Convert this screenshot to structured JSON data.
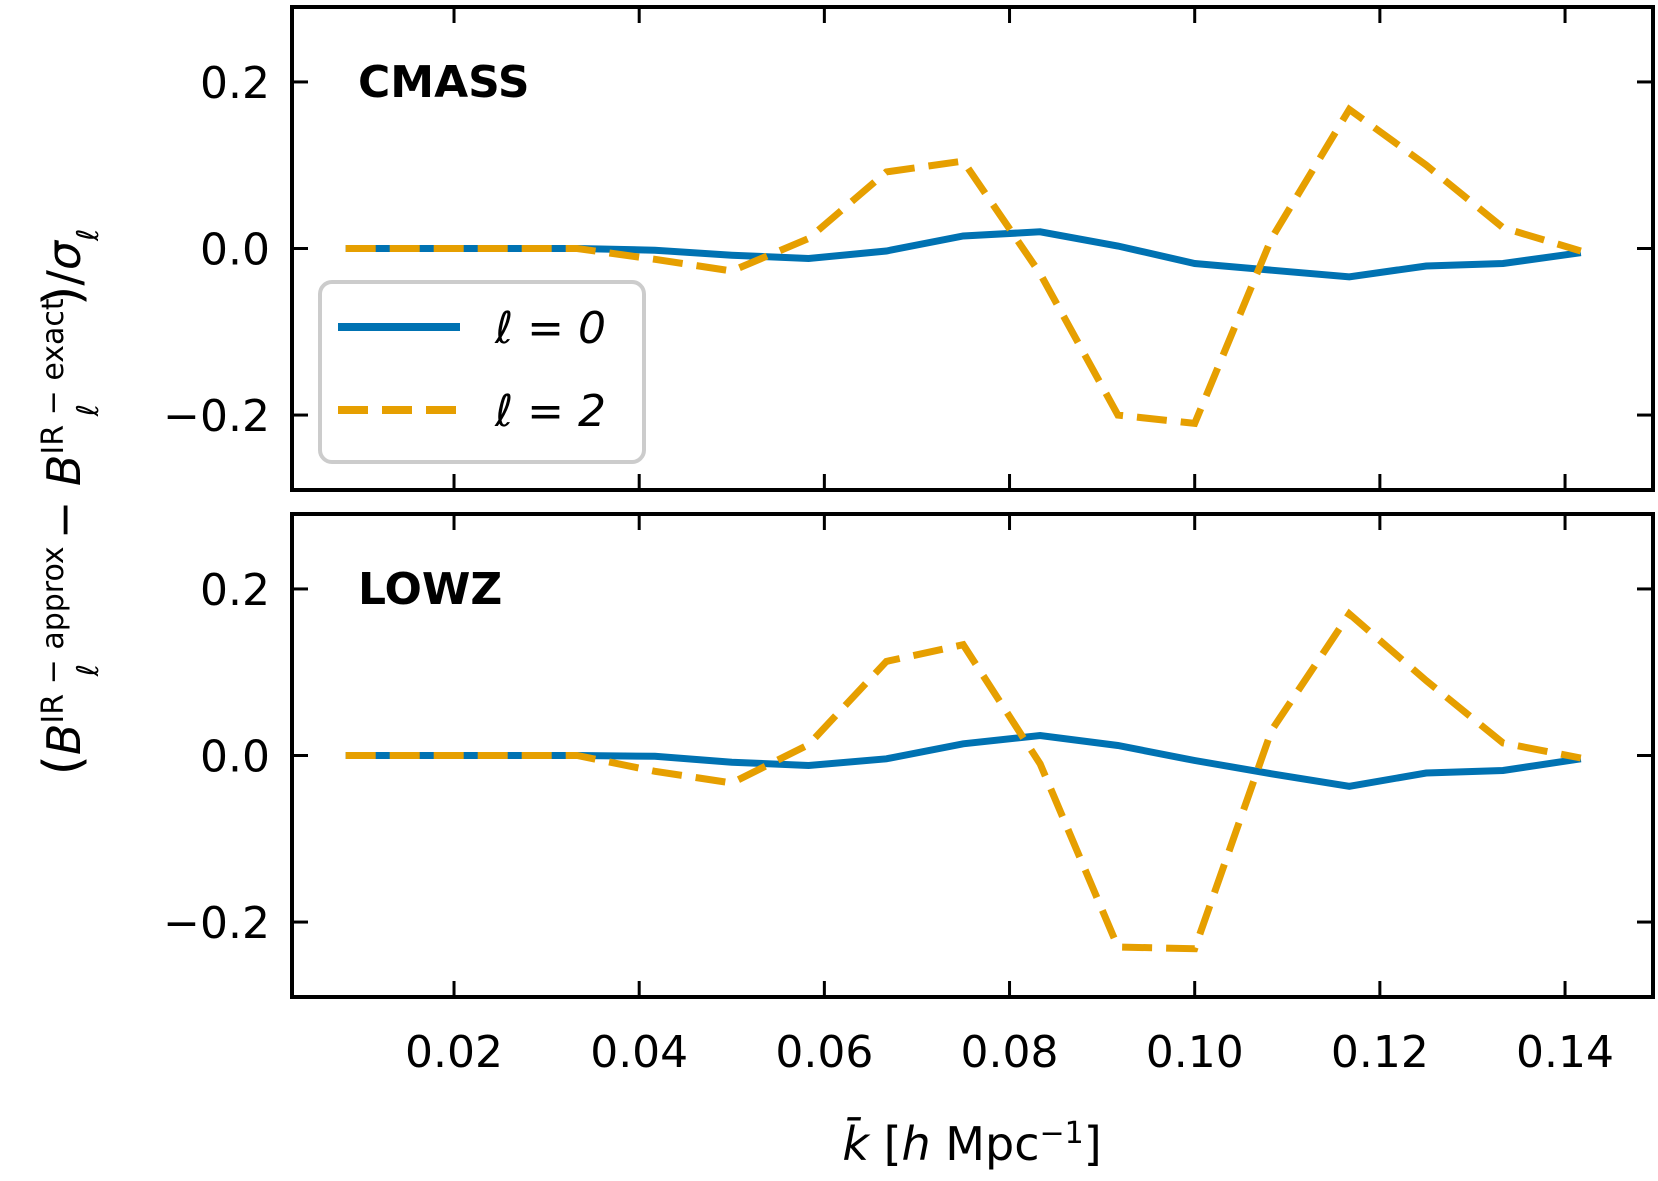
{
  "chart_data": {
    "type": "line",
    "xlabel": "k̄ [h Mpc⁻¹]",
    "ylabel": "(B_ℓ^{IR−approx} − B_ℓ^{IR−exact})/σ_ℓ",
    "xlim": [
      0.0025,
      0.1495
    ],
    "ylim": [
      -0.29,
      0.29
    ],
    "x_ticks": [
      0.02,
      0.04,
      0.06,
      0.08,
      0.1,
      0.12,
      0.14
    ],
    "x_tick_labels": [
      "0.02",
      "0.04",
      "0.06",
      "0.08",
      "0.10",
      "0.12",
      "0.14"
    ],
    "y_ticks": [
      0.2,
      0.0,
      -0.2
    ],
    "y_tick_labels": [
      "0.2",
      "0.0",
      "−0.2"
    ],
    "legend": {
      "location": "center-left of top panel",
      "entries": [
        {
          "label": "ℓ = 0",
          "color": "#0072b2",
          "style": "solid"
        },
        {
          "label": "ℓ = 2",
          "color": "#e69f00",
          "style": "dashed"
        }
      ]
    },
    "panels": [
      {
        "title": "CMASS",
        "x": [
          0.0083,
          0.0167,
          0.025,
          0.0333,
          0.0417,
          0.05,
          0.0583,
          0.0667,
          0.075,
          0.0833,
          0.0917,
          0.1,
          0.1083,
          0.1167,
          0.125,
          0.1333,
          0.1417
        ],
        "series": [
          {
            "name": "ℓ = 0",
            "values": [
              0.0,
              0.0,
              0.0,
              0.0,
              -0.002,
              -0.008,
              -0.012,
              -0.003,
              0.015,
              0.02,
              0.003,
              -0.018,
              -0.026,
              -0.034,
              -0.021,
              -0.018,
              -0.005
            ]
          },
          {
            "name": "ℓ = 2",
            "values": [
              0.0,
              0.0,
              0.0,
              0.0,
              -0.013,
              -0.027,
              0.012,
              0.092,
              0.105,
              -0.03,
              -0.2,
              -0.21,
              0.012,
              0.167,
              0.1,
              0.025,
              -0.003
            ]
          }
        ]
      },
      {
        "title": "LOWZ",
        "x": [
          0.0083,
          0.0167,
          0.025,
          0.0333,
          0.0417,
          0.05,
          0.0583,
          0.0667,
          0.075,
          0.0833,
          0.0917,
          0.1,
          0.1083,
          0.1167,
          0.125,
          0.1333,
          0.1417
        ],
        "series": [
          {
            "name": "ℓ = 0",
            "values": [
              0.0,
              0.0,
              0.0,
              0.0,
              -0.001,
              -0.008,
              -0.012,
              -0.004,
              0.014,
              0.024,
              0.012,
              -0.006,
              -0.022,
              -0.037,
              -0.021,
              -0.018,
              -0.004
            ]
          },
          {
            "name": "ℓ = 2",
            "values": [
              0.0,
              0.0,
              0.0,
              0.0,
              -0.019,
              -0.033,
              0.013,
              0.113,
              0.133,
              -0.01,
              -0.23,
              -0.232,
              0.03,
              0.17,
              0.09,
              0.015,
              -0.003
            ]
          }
        ]
      }
    ]
  }
}
